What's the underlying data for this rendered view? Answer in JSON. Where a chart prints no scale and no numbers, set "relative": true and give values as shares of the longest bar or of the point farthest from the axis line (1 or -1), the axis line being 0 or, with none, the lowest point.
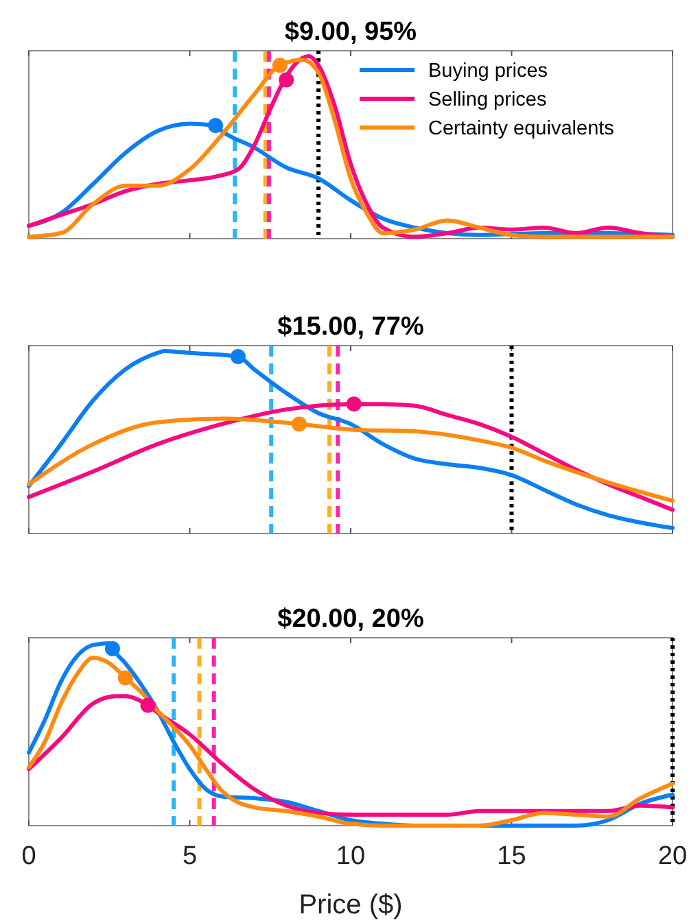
{
  "chart_data": [
    {
      "type": "line",
      "title": "$9.00, 95%",
      "relative": true,
      "xlim": [
        0,
        20
      ],
      "xticks": [
        0,
        5,
        10,
        15,
        20
      ],
      "tick_labels": false,
      "legend": "top right",
      "series": [
        {
          "name": "Buying prices",
          "color": "#0b7ff2",
          "x": [
            0,
            1,
            2,
            3,
            4,
            5,
            5.8,
            6,
            7,
            8,
            9,
            10,
            11,
            12,
            13,
            14,
            16,
            18,
            20
          ],
          "values": [
            0.07,
            0.14,
            0.3,
            0.47,
            0.59,
            0.63,
            0.62,
            0.59,
            0.5,
            0.39,
            0.33,
            0.21,
            0.11,
            0.06,
            0.03,
            0.02,
            0.03,
            0.03,
            0.02
          ]
        },
        {
          "name": "Selling prices",
          "color": "#f50a80",
          "x": [
            0,
            1,
            2,
            3,
            4,
            5,
            5.8,
            6.5,
            7,
            7.5,
            8,
            8.5,
            8.7,
            9,
            9.5,
            10,
            10.5,
            11,
            12,
            13,
            14,
            15,
            16,
            17,
            18,
            19,
            20
          ],
          "values": [
            0.07,
            0.13,
            0.19,
            0.26,
            0.3,
            0.32,
            0.34,
            0.38,
            0.51,
            0.71,
            0.89,
            0.99,
            1.0,
            0.95,
            0.73,
            0.41,
            0.19,
            0.06,
            0.01,
            0.03,
            0.06,
            0.05,
            0.06,
            0.03,
            0.06,
            0.03,
            0.01
          ]
        },
        {
          "name": "Certainty equivalents",
          "color": "#ff8a10",
          "x": [
            0,
            1,
            2,
            3,
            4,
            5,
            6,
            7,
            7.8,
            8.5,
            9,
            9.5,
            10,
            10.5,
            11,
            12,
            13,
            14,
            15,
            16,
            18,
            20
          ],
          "values": [
            0.01,
            0.03,
            0.19,
            0.29,
            0.29,
            0.38,
            0.57,
            0.79,
            0.95,
            0.98,
            0.91,
            0.65,
            0.33,
            0.14,
            0.03,
            0.05,
            0.1,
            0.06,
            0.02,
            0.01,
            0.01,
            0.01
          ]
        },
        {
          "type": "scatter",
          "color": "#0b7ff2",
          "x": [
            5.8
          ],
          "values": [
            0.62
          ]
        },
        {
          "type": "scatter",
          "color": "#f50a80",
          "x": [
            8.0
          ],
          "values": [
            0.87
          ]
        },
        {
          "type": "scatter",
          "color": "#ff8a10",
          "x": [
            7.8
          ],
          "values": [
            0.95
          ]
        }
      ],
      "ref_lines": [
        {
          "axis": "x",
          "value": 6.4,
          "color": "#29b6f6",
          "line_style": "dashed"
        },
        {
          "axis": "x",
          "value": 7.35,
          "color": "#ffae1f",
          "line_style": "dashed"
        },
        {
          "axis": "x",
          "value": 7.46,
          "color": "#ff22b0",
          "line_style": "dashed"
        },
        {
          "axis": "x",
          "value": 9.0,
          "color": "#000000",
          "line_style": "dotted"
        }
      ]
    },
    {
      "type": "line",
      "title": "$15.00, 77%",
      "relative": true,
      "xlim": [
        0,
        20
      ],
      "xticks": [
        0,
        5,
        10,
        15,
        20
      ],
      "tick_labels": false,
      "series": [
        {
          "color": "#0b7ff2",
          "x": [
            0,
            1,
            2,
            3,
            4,
            4.2,
            5,
            6.5,
            7,
            8,
            9,
            10,
            11,
            12,
            13,
            14,
            15,
            16,
            17,
            18,
            19,
            20
          ],
          "values": [
            0.26,
            0.49,
            0.73,
            0.9,
            0.99,
            1.0,
            0.99,
            0.97,
            0.9,
            0.77,
            0.66,
            0.6,
            0.49,
            0.41,
            0.38,
            0.36,
            0.32,
            0.24,
            0.16,
            0.1,
            0.06,
            0.03
          ]
        },
        {
          "color": "#f50a80",
          "x": [
            0,
            2,
            4,
            6,
            8,
            10.1,
            11,
            12,
            13,
            14,
            15,
            16,
            17,
            18,
            19,
            20
          ],
          "values": [
            0.2,
            0.34,
            0.49,
            0.6,
            0.68,
            0.71,
            0.71,
            0.7,
            0.65,
            0.6,
            0.53,
            0.44,
            0.35,
            0.27,
            0.2,
            0.13
          ]
        },
        {
          "color": "#ff8a10",
          "x": [
            0,
            2,
            4,
            6,
            8.4,
            10,
            12,
            14,
            15,
            16,
            18,
            20
          ],
          "values": [
            0.27,
            0.49,
            0.61,
            0.63,
            0.6,
            0.57,
            0.56,
            0.51,
            0.47,
            0.4,
            0.28,
            0.18
          ]
        },
        {
          "type": "scatter",
          "color": "#0b7ff2",
          "x": [
            6.5
          ],
          "values": [
            0.97
          ]
        },
        {
          "type": "scatter",
          "color": "#f50a80",
          "x": [
            10.1
          ],
          "values": [
            0.71
          ]
        },
        {
          "type": "scatter",
          "color": "#ff8a10",
          "x": [
            8.4
          ],
          "values": [
            0.6
          ]
        }
      ],
      "ref_lines": [
        {
          "axis": "x",
          "value": 7.53,
          "color": "#29b6f6",
          "line_style": "dashed"
        },
        {
          "axis": "x",
          "value": 9.34,
          "color": "#ffae1f",
          "line_style": "dashed"
        },
        {
          "axis": "x",
          "value": 9.6,
          "color": "#ff22b0",
          "line_style": "dashed"
        },
        {
          "axis": "x",
          "value": 15.0,
          "color": "#000000",
          "line_style": "dotted"
        }
      ]
    },
    {
      "type": "line",
      "title": "$20.00, 20%",
      "xlabel": "Price ($)",
      "relative": true,
      "xlim": [
        0,
        20
      ],
      "xticks": [
        0,
        5,
        10,
        15,
        20
      ],
      "tick_labels": "x",
      "series": [
        {
          "color": "#0b7ff2",
          "x": [
            0,
            0.5,
            1,
            1.5,
            2,
            2.5,
            2.6,
            3,
            3.5,
            4,
            4.5,
            5,
            5.5,
            6,
            7,
            8,
            9,
            10,
            11,
            12,
            14,
            16,
            17,
            18,
            19,
            20
          ],
          "values": [
            0.4,
            0.58,
            0.79,
            0.93,
            0.99,
            1.0,
            0.97,
            0.89,
            0.77,
            0.63,
            0.46,
            0.31,
            0.2,
            0.16,
            0.15,
            0.13,
            0.08,
            0.03,
            0.01,
            0,
            0,
            0,
            0,
            0.03,
            0.12,
            0.17
          ]
        },
        {
          "color": "#f50a80",
          "x": [
            0,
            1,
            2,
            2.7,
            3,
            3.7,
            4,
            5,
            6,
            7,
            8,
            9,
            10,
            13,
            14,
            16,
            18,
            19,
            20
          ],
          "values": [
            0.31,
            0.48,
            0.67,
            0.71,
            0.71,
            0.66,
            0.62,
            0.5,
            0.34,
            0.2,
            0.11,
            0.07,
            0.06,
            0.06,
            0.08,
            0.08,
            0.08,
            0.11,
            0.1
          ]
        },
        {
          "color": "#ff8a10",
          "x": [
            0,
            0.5,
            1,
            1.5,
            2,
            2.5,
            3,
            3.5,
            4,
            4.5,
            5,
            5.5,
            6,
            7,
            8,
            9,
            10,
            11,
            14,
            15,
            16,
            17,
            18,
            19,
            20
          ],
          "values": [
            0.32,
            0.46,
            0.67,
            0.83,
            0.92,
            0.89,
            0.81,
            0.73,
            0.63,
            0.54,
            0.44,
            0.31,
            0.19,
            0.1,
            0.08,
            0.05,
            0.01,
            0,
            0,
            0.03,
            0.07,
            0.06,
            0.05,
            0.15,
            0.23
          ]
        },
        {
          "type": "scatter",
          "color": "#0b7ff2",
          "x": [
            2.6
          ],
          "values": [
            0.97
          ]
        },
        {
          "type": "scatter",
          "color": "#ff8a10",
          "x": [
            3.0
          ],
          "values": [
            0.81
          ]
        },
        {
          "type": "scatter",
          "color": "#f50a80",
          "x": [
            3.7
          ],
          "values": [
            0.66
          ]
        }
      ],
      "ref_lines": [
        {
          "axis": "x",
          "value": 4.5,
          "color": "#29b6f6",
          "line_style": "dashed"
        },
        {
          "axis": "x",
          "value": 5.3,
          "color": "#ffae1f",
          "line_style": "dashed"
        },
        {
          "axis": "x",
          "value": 5.75,
          "color": "#ff22b0",
          "line_style": "dashed"
        },
        {
          "axis": "x",
          "value": 20,
          "color": "#000000",
          "line_style": "dotted"
        }
      ]
    }
  ]
}
